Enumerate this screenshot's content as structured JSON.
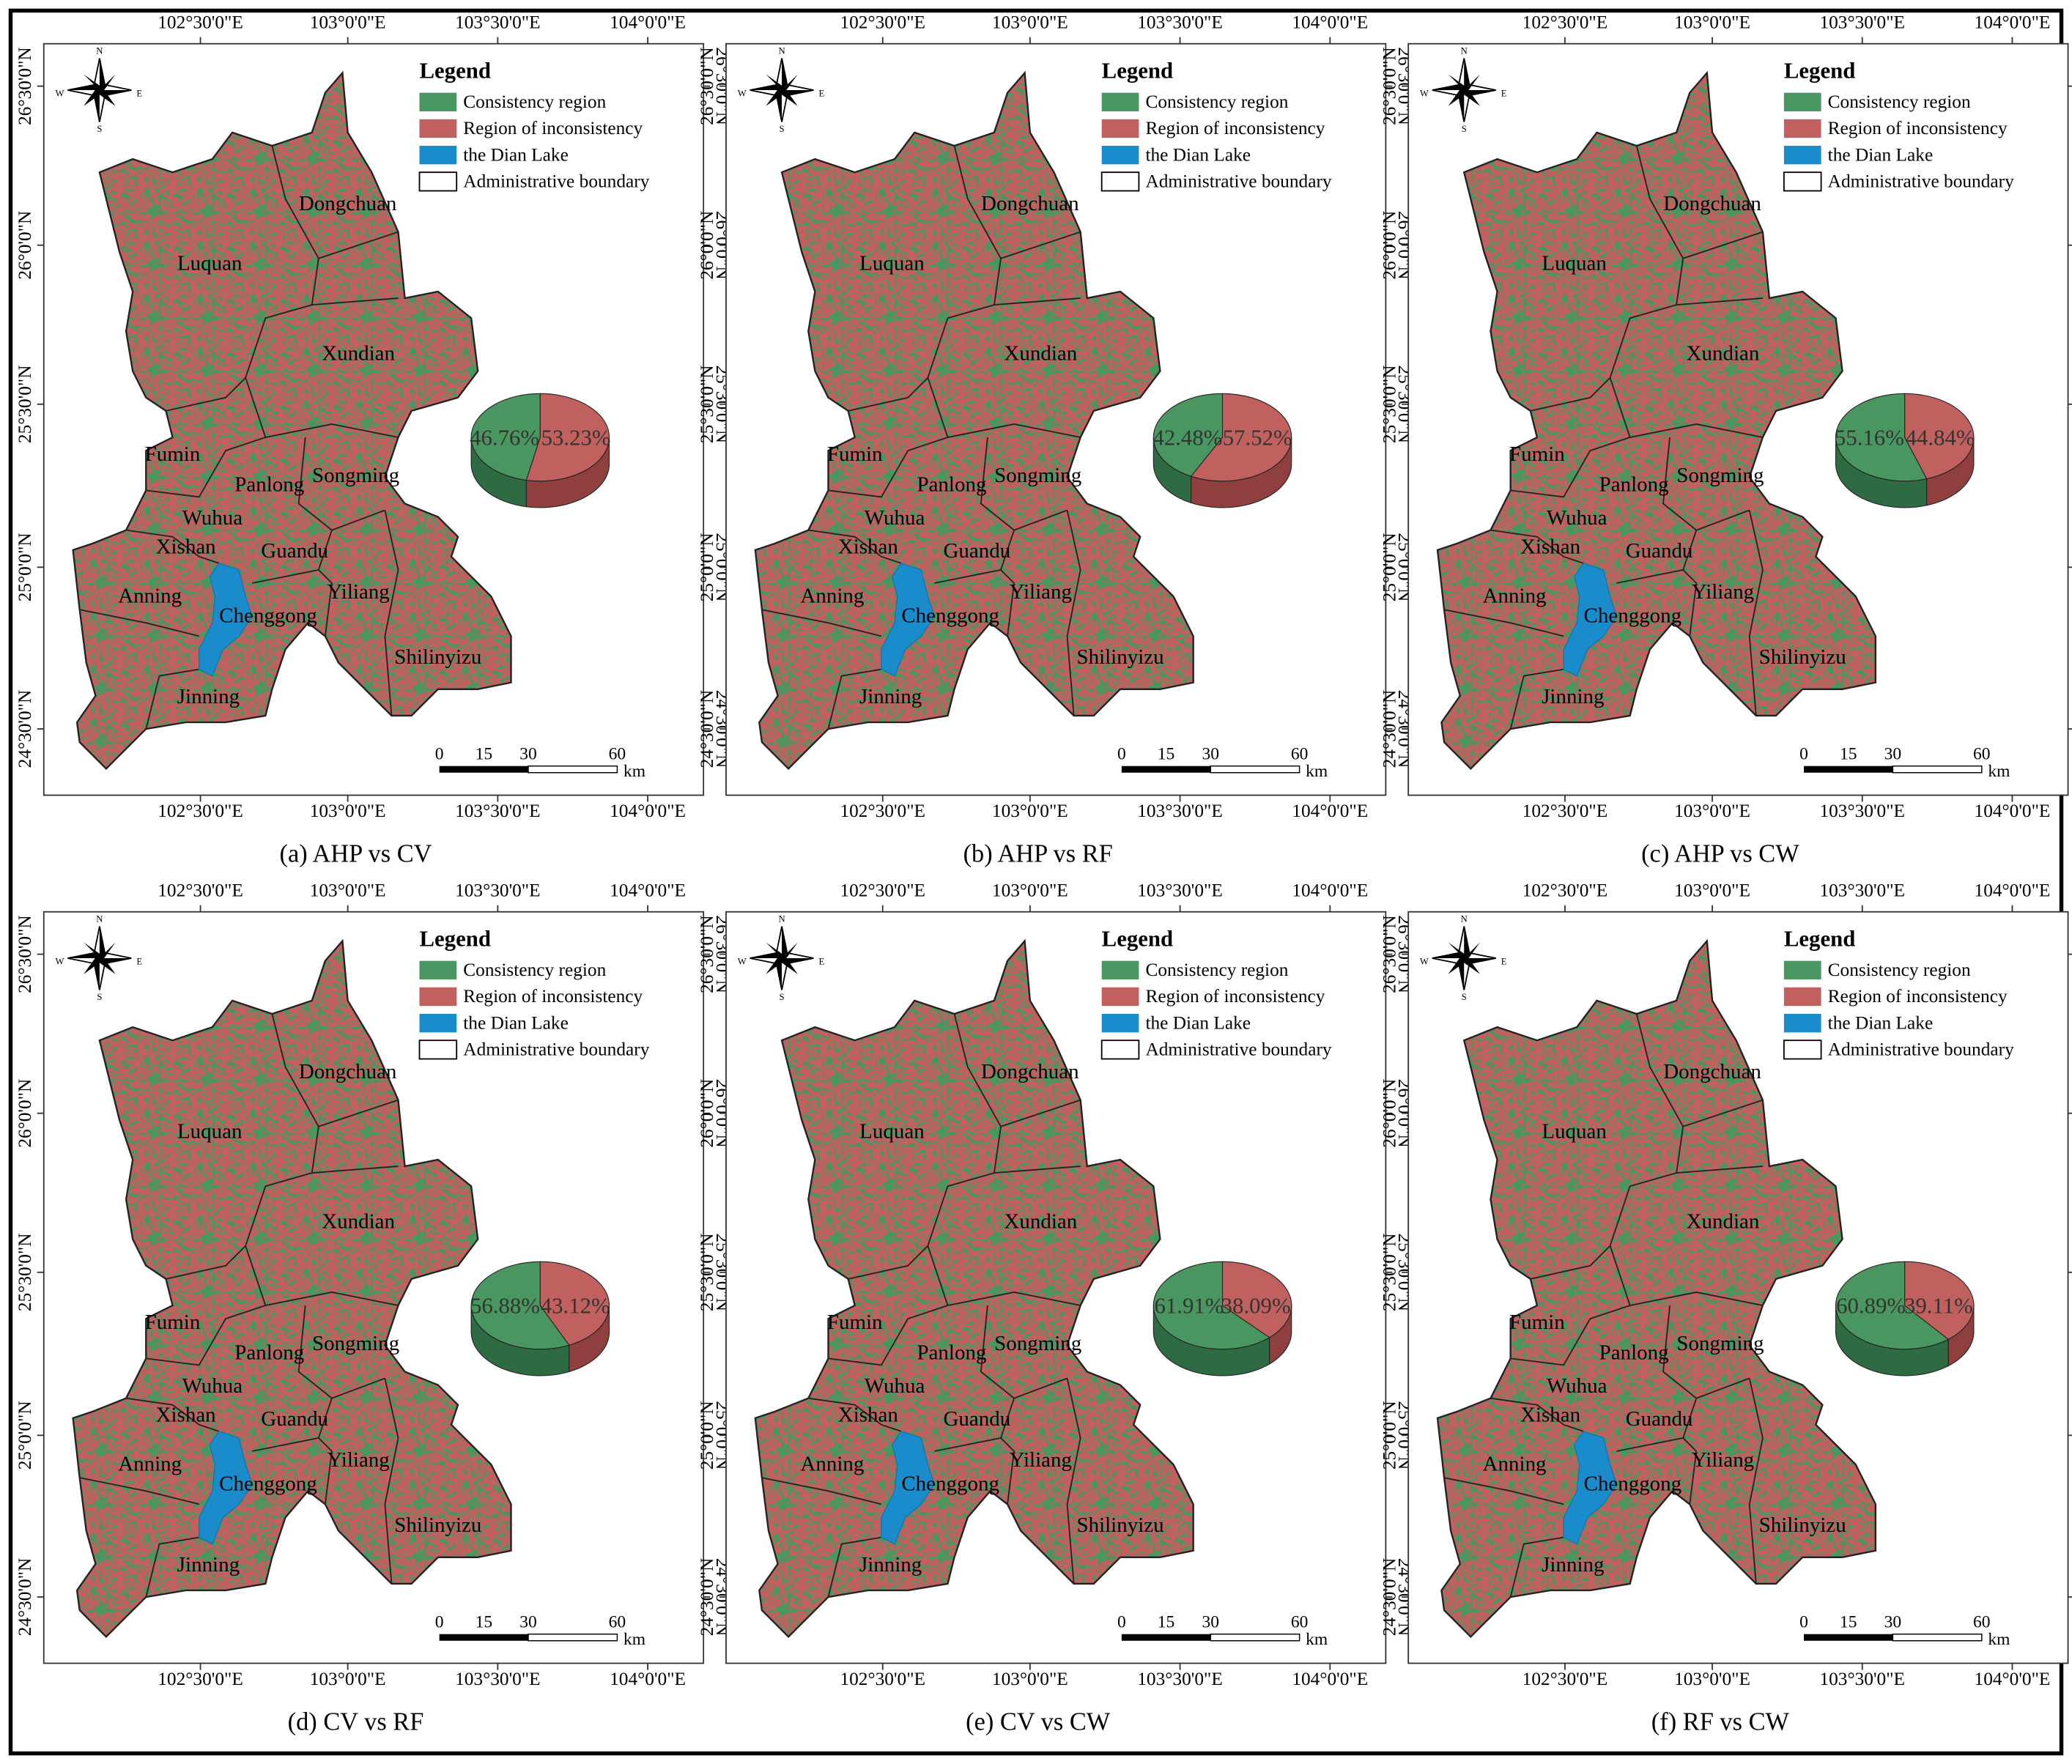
{
  "map_frame": {
    "lon_labels": [
      "102°30'0\"E",
      "103°0'0\"E",
      "103°30'0\"E",
      "104°0'0\"E"
    ],
    "lat_labels": [
      "24°30'0\"N",
      "25°0'0\"N",
      "25°30'0\"N",
      "26°0'0\"N",
      "26°30'0\"N"
    ],
    "compass": [
      "N",
      "S",
      "W",
      "E"
    ]
  },
  "legend": {
    "title": "Legend",
    "items": [
      {
        "label": "Consistency region",
        "color": "#4a9660"
      },
      {
        "label": "Region of inconsistency",
        "color": "#c0605f"
      },
      {
        "label": "the Dian Lake",
        "color": "#1a8ccc"
      },
      {
        "label": "Administrative boundary",
        "color": "#ffffff"
      }
    ]
  },
  "districts": [
    "Dongchuan",
    "Luquan",
    "Xundian",
    "Fumin",
    "Panlong",
    "Songming",
    "Wuhua",
    "Xishan",
    "Guandu",
    "Yiliang",
    "Anning",
    "Chenggong",
    "Shilinyizu",
    "Jinning"
  ],
  "scale_bar": {
    "ticks": [
      0,
      15,
      30,
      60
    ],
    "unit": "km"
  },
  "panels": [
    {
      "caption": "(a) AHP vs CV",
      "pie": {
        "type": "pie",
        "values": [
          46.76,
          53.23
        ],
        "value_labels": [
          "46.76%",
          "53.23%"
        ]
      }
    },
    {
      "caption": "(b) AHP vs RF",
      "pie": {
        "type": "pie",
        "values": [
          42.48,
          57.52
        ],
        "value_labels": [
          "42.48%",
          "57.52%"
        ]
      }
    },
    {
      "caption": "(c) AHP vs CW",
      "pie": {
        "type": "pie",
        "values": [
          55.16,
          44.84
        ],
        "value_labels": [
          "55.16%",
          "44.84%"
        ]
      }
    },
    {
      "caption": "(d) CV vs RF",
      "pie": {
        "type": "pie",
        "values": [
          56.88,
          43.12
        ],
        "value_labels": [
          "56.88%",
          "43.12%"
        ]
      }
    },
    {
      "caption": "(e) CV vs CW",
      "pie": {
        "type": "pie",
        "values": [
          61.91,
          38.09
        ],
        "value_labels": [
          "61.91%",
          "38.09%"
        ]
      }
    },
    {
      "caption": "(f) RF vs CW",
      "pie": {
        "type": "pie",
        "values": [
          60.89,
          39.11
        ],
        "value_labels": [
          "60.89%",
          "39.11%"
        ]
      }
    }
  ]
}
